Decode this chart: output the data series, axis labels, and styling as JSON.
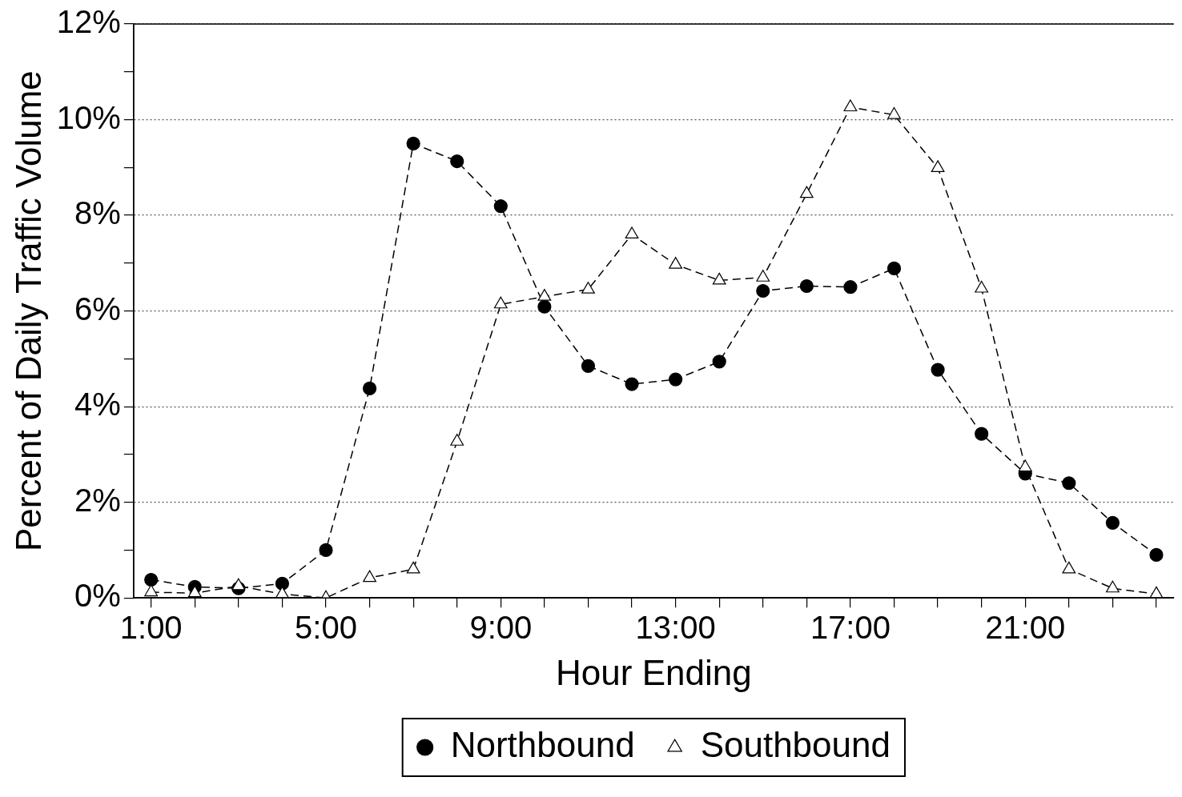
{
  "chart_data": {
    "type": "line",
    "xlabel": "Hour Ending",
    "ylabel": "Percent of Daily Traffic Volume",
    "x": [
      1,
      2,
      3,
      4,
      5,
      6,
      7,
      8,
      9,
      10,
      11,
      12,
      13,
      14,
      15,
      16,
      17,
      18,
      19,
      20,
      21,
      22,
      23,
      24
    ],
    "series": [
      {
        "name": "Northbound",
        "color": "#000000",
        "marker": "circle",
        "values": [
          0.38,
          0.23,
          0.2,
          0.3,
          1.0,
          4.38,
          9.5,
          9.13,
          8.19,
          6.09,
          4.85,
          4.47,
          4.57,
          4.94,
          6.42,
          6.52,
          6.5,
          6.89,
          4.77,
          3.43,
          2.6,
          2.4,
          1.57,
          0.9
        ]
      },
      {
        "name": "Southbound",
        "color": "#000000",
        "marker": "triangle",
        "values": [
          0.12,
          0.1,
          0.25,
          0.08,
          0,
          0.42,
          0.6,
          3.27,
          6.14,
          6.3,
          6.45,
          7.6,
          6.97,
          6.64,
          6.7,
          8.45,
          10.26,
          10.1,
          8.99,
          6.47,
          2.73,
          0.6,
          0.2,
          0.08
        ]
      }
    ],
    "xlim": [
      0.6,
      24.4
    ],
    "xticks": [
      {
        "value": 1,
        "label": "1:00"
      },
      {
        "value": 2,
        "label": null
      },
      {
        "value": 3,
        "label": null
      },
      {
        "value": 4,
        "label": null
      },
      {
        "value": 5,
        "label": "5:00"
      },
      {
        "value": 6,
        "label": null
      },
      {
        "value": 7,
        "label": null
      },
      {
        "value": 8,
        "label": null
      },
      {
        "value": 9,
        "label": "9:00"
      },
      {
        "value": 10,
        "label": null
      },
      {
        "value": 11,
        "label": null
      },
      {
        "value": 12,
        "label": null
      },
      {
        "value": 13,
        "label": "13:00"
      },
      {
        "value": 14,
        "label": null
      },
      {
        "value": 15,
        "label": null
      },
      {
        "value": 16,
        "label": null
      },
      {
        "value": 17,
        "label": "17:00"
      },
      {
        "value": 18,
        "label": null
      },
      {
        "value": 19,
        "label": null
      },
      {
        "value": 20,
        "label": null
      },
      {
        "value": 21,
        "label": "21:00"
      },
      {
        "value": 22,
        "label": null
      },
      {
        "value": 23,
        "label": null
      },
      {
        "value": 24,
        "label": null
      }
    ],
    "ylim": [
      0,
      12
    ],
    "yticks": [
      {
        "value": 0,
        "label": "0%"
      },
      {
        "value": 1,
        "label": null
      },
      {
        "value": 2,
        "label": "2%"
      },
      {
        "value": 3,
        "label": null
      },
      {
        "value": 4,
        "label": "4%"
      },
      {
        "value": 5,
        "label": null
      },
      {
        "value": 6,
        "label": "6%"
      },
      {
        "value": 7,
        "label": null
      },
      {
        "value": 8,
        "label": "8%"
      },
      {
        "value": 9,
        "label": null
      },
      {
        "value": 10,
        "label": "10%"
      },
      {
        "value": 11,
        "label": null
      },
      {
        "value": 12,
        "label": "12%"
      }
    ],
    "grid": "y",
    "legend": "bottom",
    "line_style": "dashed"
  }
}
